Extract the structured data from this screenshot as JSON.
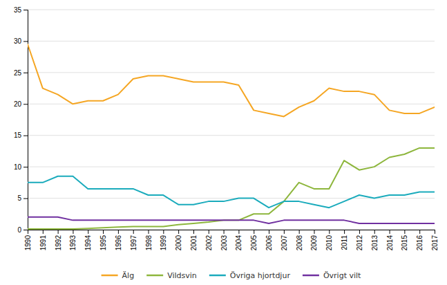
{
  "chart_data": {
    "type": "line",
    "x": [
      1990,
      1991,
      1992,
      1993,
      1994,
      1995,
      1996,
      1997,
      1998,
      1999,
      2000,
      2001,
      2002,
      2003,
      2004,
      2005,
      2006,
      2007,
      2008,
      2009,
      2010,
      2011,
      2012,
      2013,
      2014,
      2015,
      2016,
      2017
    ],
    "series": [
      {
        "name": "Älg",
        "color": "#f5a623",
        "values": [
          29.5,
          22.5,
          21.5,
          20.0,
          20.5,
          20.5,
          21.5,
          24.0,
          24.5,
          24.5,
          24.0,
          23.5,
          23.5,
          23.5,
          23.0,
          19.0,
          18.5,
          18.0,
          19.5,
          20.5,
          22.5,
          22.0,
          22.0,
          21.5,
          19.0,
          18.5,
          18.5,
          19.5
        ]
      },
      {
        "name": "Vildsvin",
        "color": "#8db63c",
        "values": [
          0.1,
          0.1,
          0.1,
          0.1,
          0.2,
          0.3,
          0.4,
          0.5,
          0.5,
          0.5,
          0.8,
          1.0,
          1.2,
          1.5,
          1.5,
          2.5,
          2.5,
          4.5,
          7.5,
          6.5,
          6.5,
          11.0,
          9.5,
          10.0,
          11.5,
          12.0,
          13.0,
          13.0
        ]
      },
      {
        "name": "Övriga hjortdjur",
        "color": "#1aabbc",
        "values": [
          7.5,
          7.5,
          8.5,
          8.5,
          6.5,
          6.5,
          6.5,
          6.5,
          5.5,
          5.5,
          4.0,
          4.0,
          4.5,
          4.5,
          5.0,
          5.0,
          3.5,
          4.5,
          4.5,
          4.0,
          3.5,
          4.5,
          5.5,
          5.0,
          5.5,
          5.5,
          6.0,
          6.0
        ]
      },
      {
        "name": "Övrigt vilt",
        "color": "#7030a0",
        "values": [
          2.0,
          2.0,
          2.0,
          1.5,
          1.5,
          1.5,
          1.5,
          1.5,
          1.5,
          1.5,
          1.5,
          1.5,
          1.5,
          1.5,
          1.5,
          1.5,
          1.0,
          1.5,
          1.5,
          1.5,
          1.5,
          1.5,
          1.0,
          1.0,
          1.0,
          1.0,
          1.0,
          1.0
        ]
      }
    ],
    "xlim": [
      1990,
      2017
    ],
    "xticks": [
      1990,
      1991,
      1992,
      1993,
      1994,
      1995,
      1996,
      1997,
      1998,
      1999,
      2000,
      2001,
      2002,
      2003,
      2004,
      2005,
      2006,
      2007,
      2008,
      2009,
      2010,
      2011,
      2012,
      2013,
      2014,
      2015,
      2016,
      2017
    ],
    "ylim": [
      0,
      35
    ],
    "yticks": [
      0,
      5,
      10,
      15,
      20,
      25,
      30,
      35
    ],
    "grid": true,
    "legend": "bottom"
  }
}
